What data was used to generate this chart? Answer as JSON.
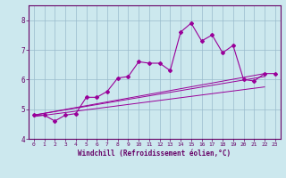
{
  "xlabel": "Windchill (Refroidissement éolien,°C)",
  "bg_color": "#cce8ee",
  "line_color": "#990099",
  "grid_color": "#99bbcc",
  "axis_color": "#660066",
  "xlim": [
    -0.5,
    23.5
  ],
  "ylim": [
    4.0,
    8.5
  ],
  "yticks": [
    4,
    5,
    6,
    7,
    8
  ],
  "xticks": [
    0,
    1,
    2,
    3,
    4,
    5,
    6,
    7,
    8,
    9,
    10,
    11,
    12,
    13,
    14,
    15,
    16,
    17,
    18,
    19,
    20,
    21,
    22,
    23
  ],
  "series1_x": [
    0,
    1,
    2,
    3,
    4,
    5,
    6,
    7,
    8,
    9,
    10,
    11,
    12,
    13,
    14,
    15,
    16,
    17,
    18,
    19,
    20,
    21,
    22,
    23
  ],
  "series1_y": [
    4.8,
    4.8,
    4.6,
    4.8,
    4.85,
    5.4,
    5.4,
    5.6,
    6.05,
    6.1,
    6.6,
    6.55,
    6.55,
    6.3,
    7.6,
    7.9,
    7.3,
    7.5,
    6.9,
    7.15,
    6.0,
    5.95,
    6.2,
    6.2
  ],
  "series2_x": [
    0,
    22
  ],
  "series2_y": [
    4.8,
    6.2
  ],
  "series3_x": [
    0,
    22
  ],
  "series3_y": [
    4.8,
    6.1
  ],
  "series4_x": [
    0,
    22
  ],
  "series4_y": [
    4.75,
    5.75
  ]
}
